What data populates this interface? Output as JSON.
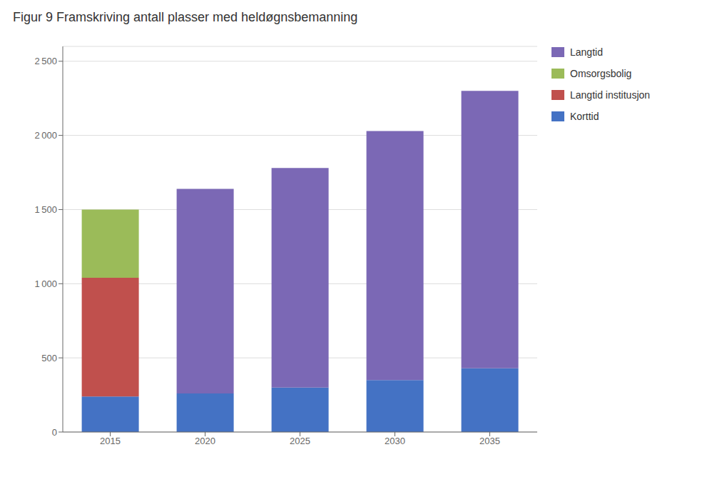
{
  "chart_data": {
    "type": "bar",
    "title": "Figur 9 Framskriving antall plasser med heldøgnsbemanning",
    "categories": [
      "2015",
      "2020",
      "2025",
      "2030",
      "2035"
    ],
    "series": [
      {
        "name": "Korttid",
        "color": "#4472C4",
        "values": [
          240,
          260,
          300,
          350,
          430
        ]
      },
      {
        "name": "Langtid institusjon",
        "color": "#C0504D",
        "values": [
          800,
          0,
          0,
          0,
          0
        ]
      },
      {
        "name": "Omsorgsbolig",
        "color": "#9BBB59",
        "values": [
          460,
          0,
          0,
          0,
          0
        ]
      },
      {
        "name": "Langtid",
        "color": "#7B68B5",
        "values": [
          0,
          1380,
          1480,
          1680,
          1870
        ]
      }
    ],
    "stacked": true,
    "ylim": [
      0,
      2600
    ],
    "yticks": [
      0,
      500,
      {
        "value": 1000,
        "label": "1 000"
      },
      {
        "value": 1500,
        "label": "1 500"
      },
      {
        "value": 2000,
        "label": "2 000"
      },
      {
        "value": 2500,
        "label": "2 500"
      }
    ],
    "grid": true,
    "legend": "right"
  }
}
